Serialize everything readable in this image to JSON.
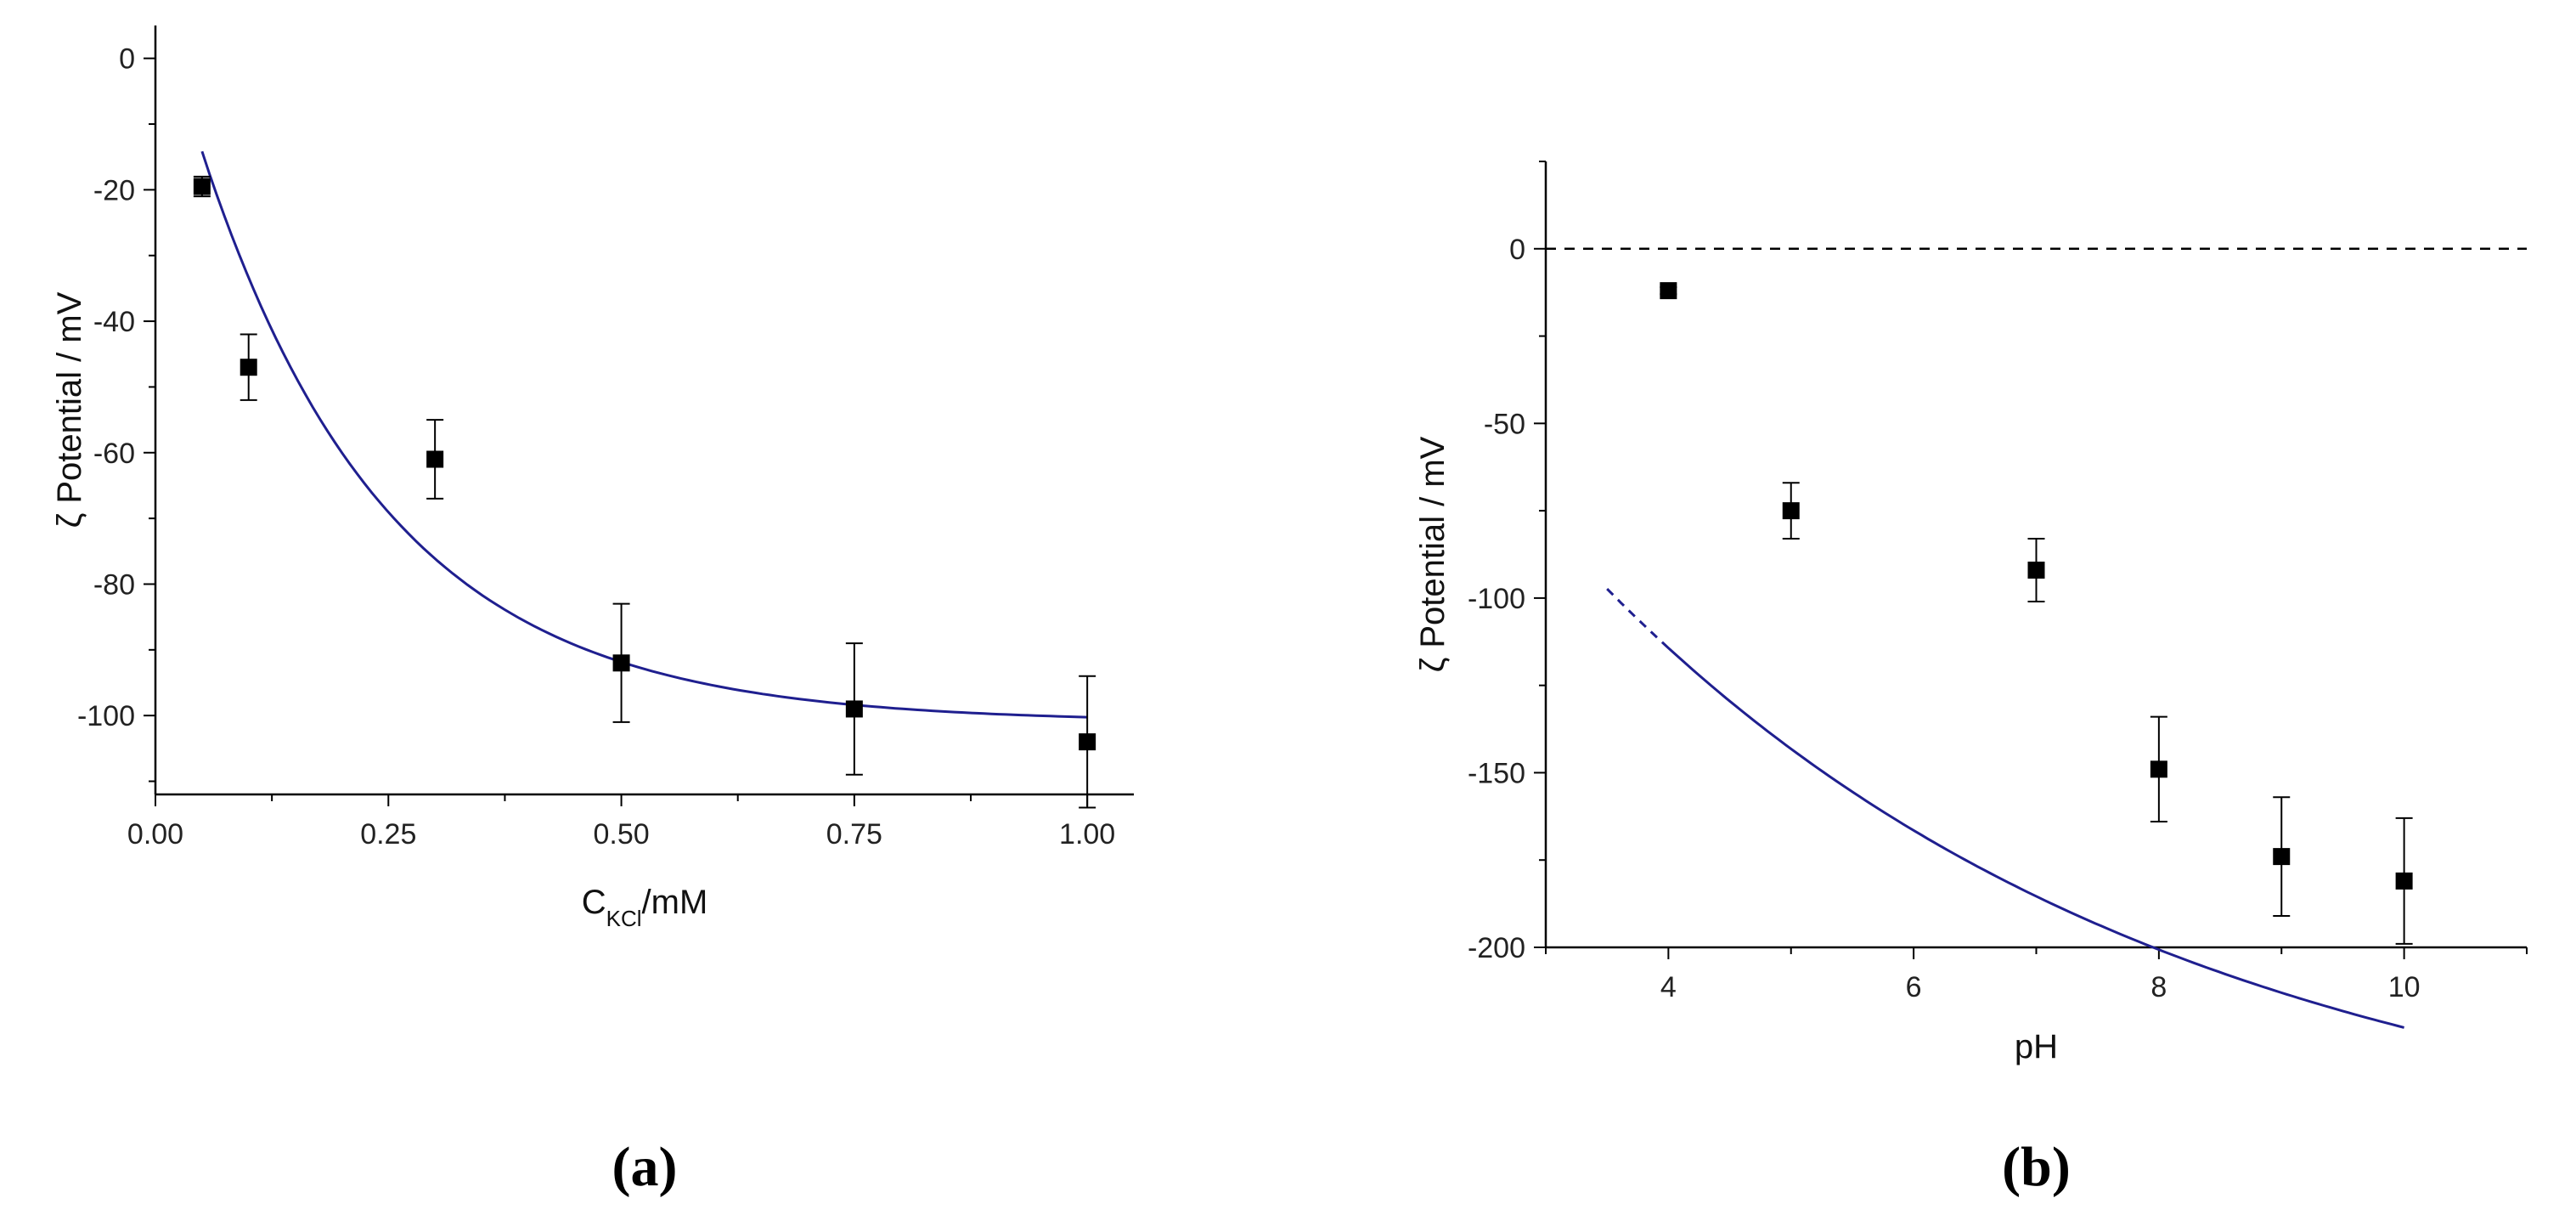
{
  "chart_data": [
    {
      "panel": "(a)",
      "type": "scatter",
      "xlabel": "C",
      "xlabel_sub": "KCl",
      "xlabel_suffix": "/mM",
      "ylabel": "ζ Potential / mV",
      "xlim": [
        0.0,
        1.05
      ],
      "ylim": [
        -112,
        5
      ],
      "xticks": [
        0.0,
        0.25,
        0.5,
        0.75,
        1.0
      ],
      "xtick_labels": [
        "0.00",
        "0.25",
        "0.50",
        "0.75",
        "1.00"
      ],
      "yticks": [
        0,
        -20,
        -40,
        -60,
        -80,
        -100
      ],
      "ytick_labels": [
        "0",
        "-20",
        "-40",
        "-60",
        "-80",
        "-100"
      ],
      "grid": false,
      "points": [
        {
          "x": 0.05,
          "y": -19.5,
          "err": 1.5
        },
        {
          "x": 0.1,
          "y": -47,
          "err": 5
        },
        {
          "x": 0.3,
          "y": -61,
          "err": 6
        },
        {
          "x": 0.5,
          "y": -92,
          "err": 9
        },
        {
          "x": 0.75,
          "y": -99,
          "err": 10
        },
        {
          "x": 1.0,
          "y": -104,
          "err": 10
        }
      ],
      "fit": {
        "x": [
          0.05,
          1.0
        ],
        "y0": -101,
        "A": 111.5,
        "t": 0.2
      },
      "fit_color": "#1f1f8f",
      "point_color": "#000000"
    },
    {
      "panel": "(b)",
      "type": "scatter",
      "xlabel": "pH",
      "ylabel": "ζ Potential / mV",
      "xlim": [
        3.0,
        11.0
      ],
      "ylim": [
        -200,
        25
      ],
      "xticks": [
        4,
        6,
        8,
        10
      ],
      "xtick_labels": [
        "4",
        "6",
        "8",
        "10"
      ],
      "yticks": [
        0,
        -50,
        -100,
        -150,
        -200
      ],
      "ytick_labels": [
        "0",
        "-50",
        "-100",
        "-150",
        "-200"
      ],
      "grid": false,
      "zero_line": true,
      "points": [
        {
          "x": 4,
          "y": -12,
          "err": 1
        },
        {
          "x": 5,
          "y": -75,
          "err": 8
        },
        {
          "x": 7,
          "y": -92,
          "err": 9
        },
        {
          "x": 8,
          "y": -149,
          "err": 15
        },
        {
          "x": 9,
          "y": -174,
          "err": 17
        },
        {
          "x": 10,
          "y": -181,
          "err": 18
        }
      ],
      "fit": {
        "x": [
          3.95,
          10.0
        ],
        "y0": -265,
        "A": 353,
        "t": 4.7
      },
      "fit_extrapolated": {
        "x": [
          3.5,
          3.95
        ]
      },
      "fit_color": "#1f1f8f",
      "point_color": "#000000"
    }
  ]
}
